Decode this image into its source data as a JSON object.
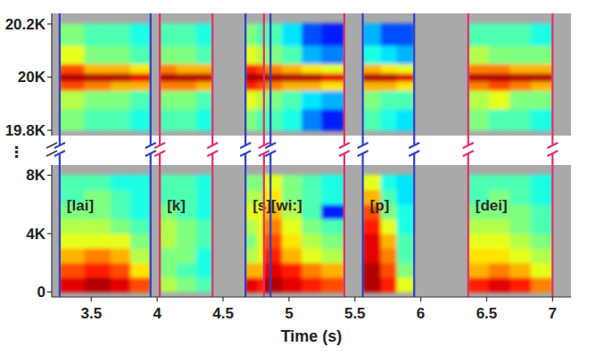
{
  "chart_data": {
    "type": "spectrogram",
    "x_label": "Time (s)",
    "xlim": [
      3.2,
      7.14
    ],
    "xticks": [
      3.5,
      4,
      4.5,
      5,
      5.5,
      6,
      6.5,
      7
    ],
    "axis_break": "⋮",
    "panels": [
      {
        "ylim": [
          19780,
          20240
        ],
        "yticks": [
          {
            "value": 19800,
            "label": "19.8K"
          },
          {
            "value": 20000,
            "label": "20K"
          },
          {
            "value": 20200,
            "label": "20.2K"
          }
        ],
        "freq_edges": [
          19800,
          19880,
          19950,
          19985,
          20015,
          20050,
          20120,
          20200
        ]
      },
      {
        "ylim": [
          -350,
          8700
        ],
        "yticks": [
          0,
          {
            "value": 4000,
            "label": "4K"
          },
          {
            "value": 8000,
            "label": "8K"
          }
        ],
        "freq_edges": [
          0,
          1000,
          2000,
          3000,
          4000,
          5000,
          6000,
          7000,
          8000
        ]
      }
    ],
    "segments": [
      {
        "label": "[lai]",
        "start": 3.26,
        "end": 3.95,
        "color": "#2f3fc4",
        "time_edges": [
          3.26,
          3.45,
          3.65,
          3.8,
          3.95
        ],
        "upper": [
          [
            0.5,
            0.55,
            0.8,
            0.95,
            0.8,
            0.6,
            0.5
          ],
          [
            0.45,
            0.5,
            0.75,
            0.95,
            0.7,
            0.5,
            0.45
          ],
          [
            0.45,
            0.5,
            0.7,
            0.95,
            0.7,
            0.5,
            0.45
          ],
          [
            0.4,
            0.45,
            0.7,
            0.9,
            0.65,
            0.45,
            0.4
          ]
        ],
        "lower": [
          [
            0.9,
            0.8,
            0.7,
            0.6,
            0.55,
            0.5,
            0.45,
            0.45
          ],
          [
            0.95,
            0.85,
            0.75,
            0.6,
            0.55,
            0.5,
            0.5,
            0.45
          ],
          [
            0.9,
            0.8,
            0.7,
            0.6,
            0.5,
            0.45,
            0.45,
            0.4
          ],
          [
            0.8,
            0.65,
            0.55,
            0.5,
            0.45,
            0.4,
            0.4,
            0.4
          ]
        ]
      },
      {
        "label": "[k]",
        "start": 4.02,
        "end": 4.42,
        "color": "#e0306a",
        "time_edges": [
          4.02,
          4.15,
          4.3,
          4.42
        ],
        "upper": [
          [
            0.45,
            0.5,
            0.75,
            0.95,
            0.75,
            0.5,
            0.45
          ],
          [
            0.45,
            0.5,
            0.75,
            0.95,
            0.7,
            0.5,
            0.45
          ],
          [
            0.4,
            0.45,
            0.7,
            0.95,
            0.7,
            0.45,
            0.4
          ]
        ],
        "lower": [
          [
            0.55,
            0.5,
            0.5,
            0.55,
            0.55,
            0.5,
            0.45,
            0.45
          ],
          [
            0.5,
            0.45,
            0.5,
            0.5,
            0.5,
            0.45,
            0.45,
            0.45
          ],
          [
            0.45,
            0.4,
            0.4,
            0.45,
            0.45,
            0.4,
            0.4,
            0.4
          ]
        ]
      },
      {
        "label": "[s]",
        "start": 4.67,
        "end": 4.86,
        "color": "#2f3fc4",
        "time_edges": [
          4.67,
          4.76,
          4.86
        ],
        "upper": [
          [
            0.5,
            0.6,
            0.85,
            0.95,
            0.85,
            0.6,
            0.5
          ],
          [
            0.45,
            0.55,
            0.8,
            0.95,
            0.8,
            0.55,
            0.45
          ]
        ],
        "lower": [
          [
            0.9,
            0.7,
            0.55,
            0.5,
            0.55,
            0.6,
            0.55,
            0.5
          ],
          [
            0.85,
            0.7,
            0.6,
            0.6,
            0.6,
            0.6,
            0.55,
            0.5
          ]
        ]
      },
      {
        "label": "[wi:]",
        "start": 4.81,
        "end": 5.42,
        "color": "#e0306a",
        "time_edges": [
          4.81,
          4.95,
          5.1,
          5.25,
          5.42
        ],
        "upper": [
          [
            0.45,
            0.5,
            0.75,
            0.95,
            0.75,
            0.5,
            0.45
          ],
          [
            0.4,
            0.45,
            0.7,
            0.95,
            0.7,
            0.45,
            0.35
          ],
          [
            0.25,
            0.35,
            0.7,
            0.95,
            0.65,
            0.3,
            0.2
          ],
          [
            0.15,
            0.3,
            0.65,
            0.9,
            0.6,
            0.25,
            0.15
          ]
        ],
        "lower": [
          [
            0.95,
            0.9,
            0.85,
            0.8,
            0.75,
            0.7,
            0.65,
            0.6
          ],
          [
            0.9,
            0.85,
            0.7,
            0.65,
            0.6,
            0.55,
            0.5,
            0.5
          ],
          [
            0.85,
            0.75,
            0.6,
            0.55,
            0.5,
            0.45,
            0.45,
            0.45
          ],
          [
            0.8,
            0.7,
            0.55,
            0.5,
            0.45,
            0.15,
            0.4,
            0.4
          ]
        ]
      },
      {
        "label": "[p]",
        "start": 5.56,
        "end": 5.95,
        "color": "#2f3fc4",
        "time_edges": [
          5.56,
          5.7,
          5.82,
          5.95
        ],
        "upper": [
          [
            0.45,
            0.5,
            0.7,
            0.95,
            0.7,
            0.4,
            0.3
          ],
          [
            0.4,
            0.45,
            0.7,
            0.95,
            0.65,
            0.35,
            0.2
          ],
          [
            0.35,
            0.45,
            0.65,
            0.9,
            0.6,
            0.3,
            0.2
          ]
        ],
        "lower": [
          [
            0.95,
            0.95,
            0.9,
            0.9,
            0.85,
            0.8,
            0.7,
            0.6
          ],
          [
            0.85,
            0.8,
            0.75,
            0.7,
            0.6,
            0.5,
            0.45,
            0.4
          ],
          [
            0.6,
            0.5,
            0.45,
            0.45,
            0.4,
            0.4,
            0.35,
            0.35
          ]
        ]
      },
      {
        "label": "[dei]",
        "start": 6.36,
        "end": 7.0,
        "color": "#e0306a",
        "time_edges": [
          6.36,
          6.52,
          6.68,
          6.84,
          7.0
        ],
        "upper": [
          [
            0.5,
            0.55,
            0.75,
            0.95,
            0.75,
            0.55,
            0.45
          ],
          [
            0.45,
            0.6,
            0.8,
            0.95,
            0.75,
            0.5,
            0.45
          ],
          [
            0.45,
            0.5,
            0.75,
            0.95,
            0.7,
            0.5,
            0.45
          ],
          [
            0.4,
            0.5,
            0.7,
            0.95,
            0.7,
            0.5,
            0.4
          ]
        ],
        "lower": [
          [
            0.85,
            0.7,
            0.65,
            0.6,
            0.55,
            0.5,
            0.45,
            0.45
          ],
          [
            0.9,
            0.75,
            0.65,
            0.6,
            0.55,
            0.5,
            0.5,
            0.45
          ],
          [
            0.85,
            0.7,
            0.6,
            0.55,
            0.5,
            0.5,
            0.45,
            0.45
          ],
          [
            0.75,
            0.6,
            0.55,
            0.5,
            0.45,
            0.45,
            0.4,
            0.4
          ]
        ]
      }
    ]
  }
}
